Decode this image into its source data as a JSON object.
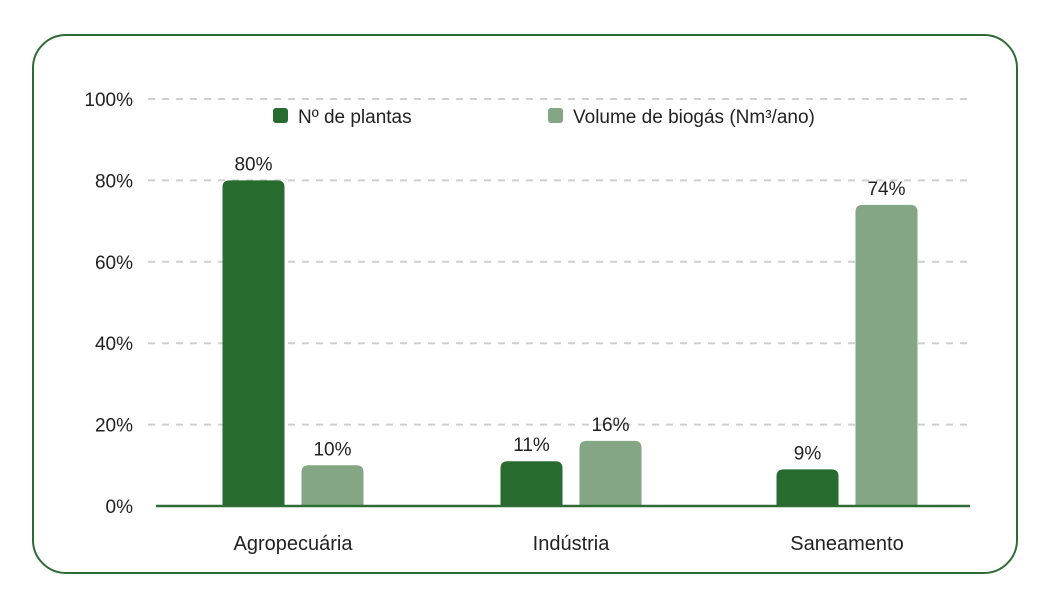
{
  "chart_data": {
    "type": "bar",
    "categories": [
      "Agropecuária",
      "Indústria",
      "Saneamento"
    ],
    "series": [
      {
        "name": "Nº de plantas",
        "color": "#276b2f",
        "values": [
          80,
          11,
          9
        ],
        "labels": [
          "80%",
          "11%",
          "9%"
        ]
      },
      {
        "name": "Volume de biogás (Nm³/ano)",
        "color": "#84a684",
        "values": [
          10,
          16,
          74
        ],
        "labels": [
          "10%",
          "16%",
          "74%"
        ]
      }
    ],
    "ylim": [
      0,
      100
    ],
    "yticks": [
      0,
      20,
      40,
      60,
      80,
      100
    ],
    "ytick_labels": [
      "0%",
      "20%",
      "40%",
      "60%",
      "80%",
      "100%"
    ],
    "grid": true,
    "legend_position": "top-center"
  }
}
